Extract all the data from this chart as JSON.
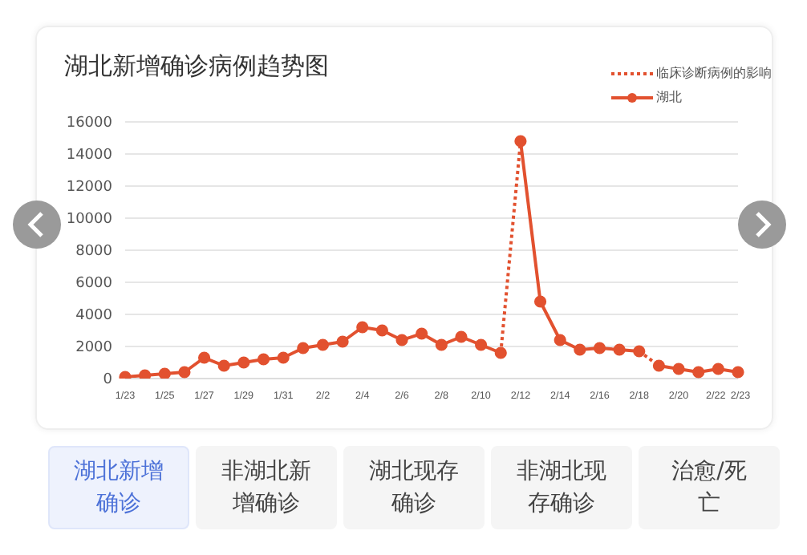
{
  "chart_data": {
    "type": "line",
    "title": "湖北新增确诊病例趋势图",
    "categories": [
      "1/23",
      null,
      "1/25",
      null,
      "1/27",
      null,
      "1/29",
      null,
      "1/31",
      null,
      "2/2",
      null,
      "2/4",
      null,
      "2/6",
      null,
      "2/8",
      null,
      "2/10",
      null,
      "2/12",
      null,
      "2/14",
      null,
      "2/16",
      null,
      "2/18",
      null,
      "2/20",
      null,
      "2/22",
      "2/23"
    ],
    "series": [
      {
        "name": "临床诊断病例的影响",
        "color": "#e2512f",
        "line_style": "dotted",
        "values": [
          null,
          null,
          null,
          null,
          null,
          null,
          null,
          null,
          null,
          null,
          null,
          null,
          null,
          null,
          null,
          null,
          null,
          null,
          null,
          1600,
          14800,
          null,
          null,
          null,
          null,
          null,
          1700,
          800,
          null,
          null,
          null,
          null
        ]
      },
      {
        "name": "湖北",
        "color": "#e2512f",
        "line_style": "solid",
        "marker": "circle",
        "values": [
          100,
          200,
          300,
          400,
          1300,
          800,
          1000,
          1200,
          1300,
          1900,
          2100,
          2300,
          3200,
          3000,
          2400,
          2800,
          2100,
          2600,
          2100,
          1600,
          14800,
          4800,
          2400,
          1800,
          1900,
          1800,
          1700,
          800,
          600,
          400,
          600,
          400
        ]
      }
    ],
    "ylim": [
      0,
      16000
    ],
    "yticks": [
      0,
      2000,
      4000,
      6000,
      8000,
      10000,
      12000,
      14000,
      16000
    ],
    "grid": "y",
    "legend": "top right",
    "annotations": [
      "湖北新增确诊",
      "非湖北新增确诊",
      "湖北现存确诊",
      "非湖北现存确诊",
      "治愈/死亡"
    ]
  }
}
